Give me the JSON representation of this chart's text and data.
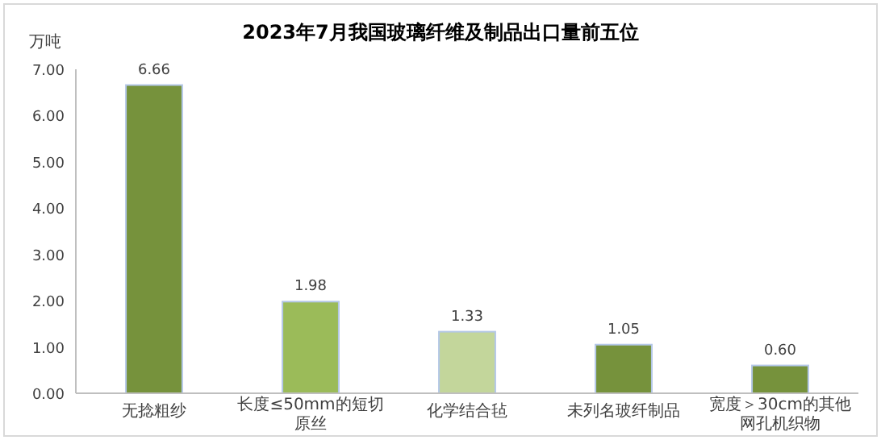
{
  "chart_data": {
    "type": "bar",
    "title": "2023年7月我国玻璃纤维及制品出口量前五位",
    "ylabel": "万吨",
    "categories": [
      "无捻粗纱",
      "长度≤50mm的短切原丝",
      "化学结合毡",
      "未列名玻纤制品",
      "宽度＞30cm的其他网孔机织物"
    ],
    "values": [
      6.66,
      1.98,
      1.33,
      1.05,
      0.6
    ],
    "colors": [
      "#76923c",
      "#9bbb59",
      "#c3d69b",
      "#76923c",
      "#76923c"
    ],
    "value_labels": [
      "6.66",
      "1.98",
      "1.33",
      "1.05",
      "0.60"
    ],
    "ylim": [
      0,
      7
    ],
    "yticks": [
      {
        "value": 0,
        "label": "0.00"
      },
      {
        "value": 1,
        "label": "1.00"
      },
      {
        "value": 2,
        "label": "2.00"
      },
      {
        "value": 3,
        "label": "3.00"
      },
      {
        "value": 4,
        "label": "4.00"
      },
      {
        "value": 5,
        "label": "5.00"
      },
      {
        "value": 6,
        "label": "6.00"
      },
      {
        "value": 7,
        "label": "7.00"
      }
    ],
    "grid": false
  }
}
